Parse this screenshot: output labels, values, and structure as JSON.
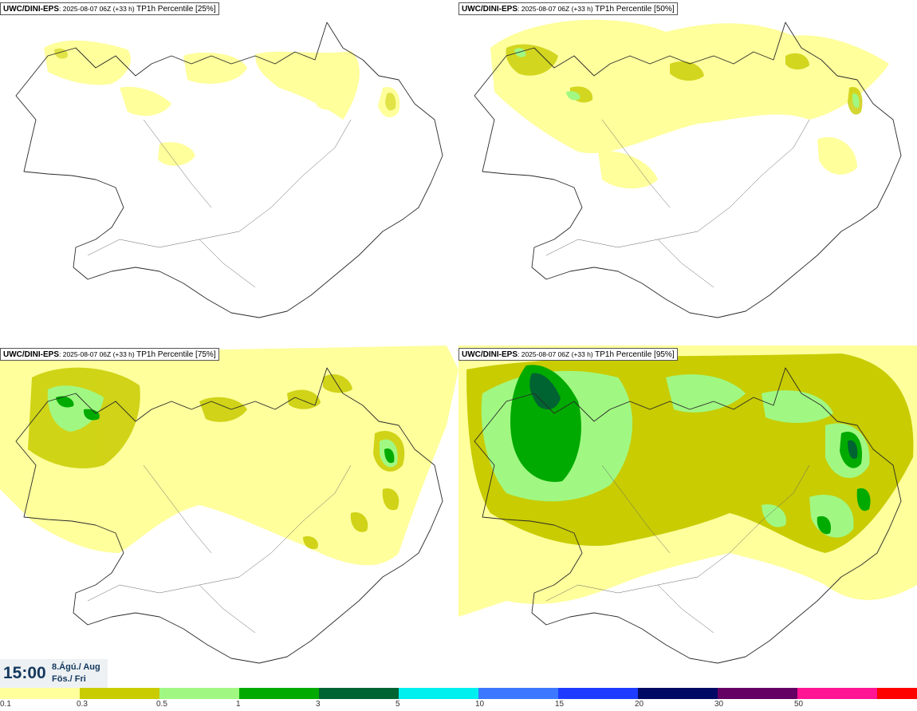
{
  "panels": [
    {
      "source": "UWC/DINI-EPS",
      "meta": ": 2025-08-07 06Z (+33 h) ",
      "label": "TP1h Percentile [25%]"
    },
    {
      "source": "UWC/DINI-EPS",
      "meta": ": 2025-08-07 06Z (+33 h) ",
      "label": "TP1h Percentile [50%]"
    },
    {
      "source": "UWC/DINI-EPS",
      "meta": ": 2025-08-07 06Z (+33 h) ",
      "label": "TP1h Percentile [75%]"
    },
    {
      "source": "UWC/DINI-EPS",
      "meta": ": 2025-08-07 06Z (+33 h) ",
      "label": "TP1h Percentile [95%]"
    }
  ],
  "valid_time": {
    "time": "15:00",
    "date_line1": "8.Ágú./ Aug",
    "date_line2": "Fös./ Fri"
  },
  "colorscale": {
    "colors": [
      "#ffff9c",
      "#c8cc00",
      "#a0f882",
      "#00aa00",
      "#006432",
      "#00f0f0",
      "#3c78ff",
      "#1e3cff",
      "#000a64",
      "#640064",
      "#ff1493",
      "#ff0000"
    ],
    "ticks": [
      "0.1",
      "0.3",
      "0.5",
      "1",
      "3",
      "5",
      "10",
      "15",
      "20",
      "30",
      "50"
    ]
  }
}
